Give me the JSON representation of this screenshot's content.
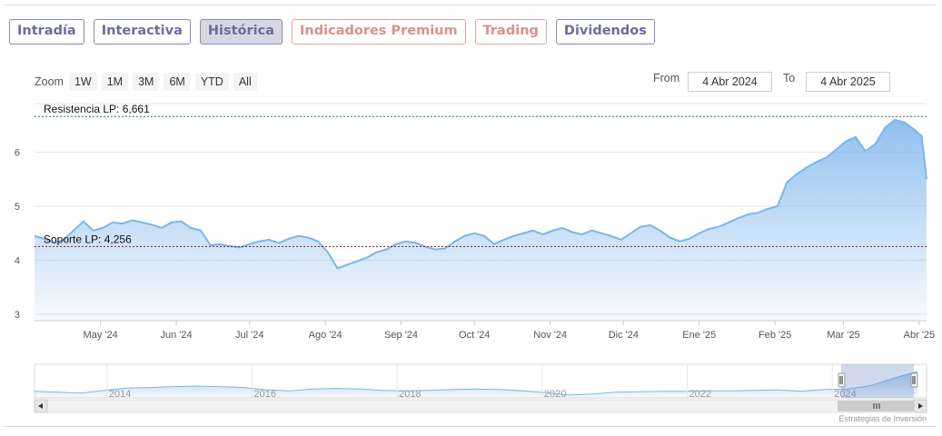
{
  "tabs": [
    {
      "label": "Intradía",
      "state": "normal"
    },
    {
      "label": "Interactiva",
      "state": "normal"
    },
    {
      "label": "Histórica",
      "state": "active"
    },
    {
      "label": "Indicadores Premium",
      "state": "premium"
    },
    {
      "label": "Trading",
      "state": "premium"
    },
    {
      "label": "Dividendos",
      "state": "normal"
    }
  ],
  "zoom": {
    "label": "Zoom",
    "buttons": [
      "1W",
      "1M",
      "3M",
      "6M",
      "YTD",
      "All"
    ]
  },
  "range": {
    "from_label": "From",
    "from_value": "4 Abr 2024",
    "to_label": "To",
    "to_value": "4 Abr 2025"
  },
  "credit": "Estrategias de Inversión",
  "colors": {
    "accent": "#7cb5ec",
    "support": "#8b1a1a",
    "resistance": "#2e7d32",
    "tab_border": "#8a8ab3",
    "premium": "#dd8f8f"
  },
  "chart_data": {
    "type": "area",
    "y_ticks": [
      3,
      4,
      5,
      6
    ],
    "ylim": [
      2.9,
      6.9
    ],
    "x_range": [
      "2024-04-04",
      "2025-04-04"
    ],
    "x_ticks": [
      {
        "label": "May '24",
        "date": "2024-05-01"
      },
      {
        "label": "Jun '24",
        "date": "2024-06-01"
      },
      {
        "label": "Jul '24",
        "date": "2024-07-01"
      },
      {
        "label": "Ago '24",
        "date": "2024-08-01"
      },
      {
        "label": "Sep '24",
        "date": "2024-09-01"
      },
      {
        "label": "Oct '24",
        "date": "2024-10-01"
      },
      {
        "label": "Nov '24",
        "date": "2024-11-01"
      },
      {
        "label": "Dic '24",
        "date": "2024-12-01"
      },
      {
        "label": "Ene '25",
        "date": "2025-01-01"
      },
      {
        "label": "Feb '25",
        "date": "2025-02-01"
      },
      {
        "label": "Mar '25",
        "date": "2025-03-01"
      },
      {
        "label": "Abr '25",
        "date": "2025-04-01"
      }
    ],
    "annotations": [
      {
        "label": "Resistencia LP: 6,661",
        "value": 6.661,
        "style": "resistance"
      },
      {
        "label": "Soporte LP: 4,256",
        "value": 4.256,
        "style": "support"
      }
    ],
    "series": [
      {
        "x": [
          "2024-04-04",
          "2024-04-08",
          "2024-04-12",
          "2024-04-16",
          "2024-04-20",
          "2024-04-24",
          "2024-04-28",
          "2024-05-02",
          "2024-05-06",
          "2024-05-10",
          "2024-05-14",
          "2024-05-18",
          "2024-05-22",
          "2024-05-26",
          "2024-05-30",
          "2024-06-03",
          "2024-06-07",
          "2024-06-11",
          "2024-06-15",
          "2024-06-19",
          "2024-06-23",
          "2024-06-27",
          "2024-07-01",
          "2024-07-05",
          "2024-07-09",
          "2024-07-13",
          "2024-07-17",
          "2024-07-21",
          "2024-07-25",
          "2024-07-29",
          "2024-08-02",
          "2024-08-06",
          "2024-08-10",
          "2024-08-14",
          "2024-08-18",
          "2024-08-22",
          "2024-08-26",
          "2024-08-30",
          "2024-09-03",
          "2024-09-07",
          "2024-09-11",
          "2024-09-15",
          "2024-09-19",
          "2024-09-23",
          "2024-09-27",
          "2024-10-01",
          "2024-10-05",
          "2024-10-09",
          "2024-10-13",
          "2024-10-17",
          "2024-10-21",
          "2024-10-25",
          "2024-10-29",
          "2024-11-02",
          "2024-11-06",
          "2024-11-10",
          "2024-11-14",
          "2024-11-18",
          "2024-11-22",
          "2024-11-26",
          "2024-11-30",
          "2024-12-04",
          "2024-12-08",
          "2024-12-12",
          "2024-12-16",
          "2024-12-20",
          "2024-12-24",
          "2024-12-28",
          "2025-01-01",
          "2025-01-05",
          "2025-01-09",
          "2025-01-13",
          "2025-01-17",
          "2025-01-21",
          "2025-01-25",
          "2025-01-29",
          "2025-02-02",
          "2025-02-06",
          "2025-02-10",
          "2025-02-14",
          "2025-02-18",
          "2025-02-22",
          "2025-02-26",
          "2025-03-02",
          "2025-03-06",
          "2025-03-10",
          "2025-03-14",
          "2025-03-18",
          "2025-03-22",
          "2025-03-26",
          "2025-03-30",
          "2025-04-02",
          "2025-04-04"
        ],
        "values": [
          4.45,
          4.4,
          4.32,
          4.38,
          4.55,
          4.72,
          4.55,
          4.6,
          4.7,
          4.68,
          4.74,
          4.7,
          4.66,
          4.6,
          4.7,
          4.72,
          4.6,
          4.55,
          4.28,
          4.3,
          4.26,
          4.24,
          4.3,
          4.35,
          4.38,
          4.32,
          4.4,
          4.45,
          4.42,
          4.35,
          4.15,
          3.85,
          3.92,
          3.98,
          4.05,
          4.15,
          4.2,
          4.3,
          4.35,
          4.32,
          4.25,
          4.2,
          4.22,
          4.35,
          4.45,
          4.5,
          4.45,
          4.3,
          4.38,
          4.45,
          4.5,
          4.55,
          4.48,
          4.55,
          4.6,
          4.52,
          4.48,
          4.55,
          4.5,
          4.45,
          4.38,
          4.5,
          4.62,
          4.65,
          4.55,
          4.42,
          4.35,
          4.4,
          4.5,
          4.58,
          4.62,
          4.7,
          4.78,
          4.85,
          4.88,
          4.95,
          5.0,
          5.45,
          5.6,
          5.72,
          5.82,
          5.9,
          6.05,
          6.2,
          6.28,
          6.02,
          6.15,
          6.45,
          6.6,
          6.55,
          6.42,
          6.3,
          5.5
        ]
      }
    ],
    "navigator": {
      "x_ticks": [
        "2014",
        "2016",
        "2018",
        "2020",
        "2022",
        "2024"
      ],
      "range": [
        2013,
        2025.3
      ],
      "values": [
        4.2,
        4.1,
        4.0,
        4.3,
        4.55,
        4.6,
        4.7,
        4.75,
        4.7,
        4.6,
        4.35,
        4.25,
        4.45,
        4.5,
        4.45,
        4.3,
        4.25,
        4.3,
        4.4,
        4.45,
        4.4,
        4.25,
        4.05,
        3.8,
        3.9,
        4.1,
        4.15,
        4.2,
        4.2,
        4.25,
        4.25,
        4.3,
        4.35,
        4.2,
        4.4,
        4.45,
        4.8,
        5.6,
        6.3
      ],
      "selected": [
        "2024-04-04",
        "2025-04-04"
      ]
    }
  }
}
